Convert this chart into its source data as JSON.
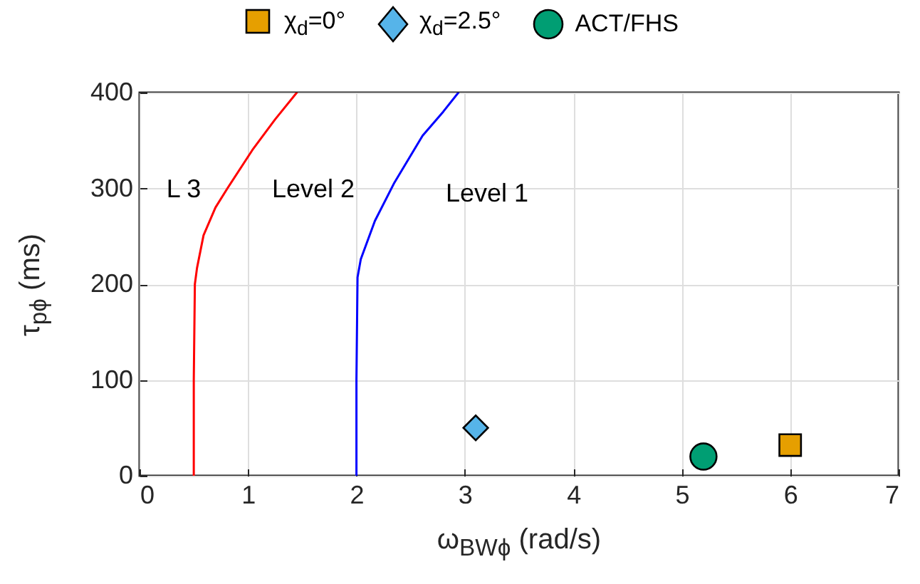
{
  "chart_data": {
    "type": "scatter",
    "xlabel": "ω$_{BWϕ}$ (rad/s)",
    "ylabel": "τ$_{pϕ}$ (ms)",
    "xlim": [
      0,
      7
    ],
    "xticks": [
      0,
      1,
      2,
      3,
      4,
      5,
      6,
      7
    ],
    "ylim": [
      0,
      400
    ],
    "yticks": [
      0,
      100,
      200,
      300,
      400
    ],
    "grid": true,
    "legend": "top",
    "series": [
      {
        "type": "line",
        "color": "#ff0000",
        "x": [
          0.5,
          0.5,
          0.51,
          0.53,
          0.59,
          0.7,
          0.81,
          1.04,
          1.25,
          1.45
        ],
        "values": [
          0,
          100,
          200,
          217,
          251,
          280,
          300,
          340,
          372,
          400
        ]
      },
      {
        "type": "line",
        "color": "#0000ff",
        "x": [
          2.0,
          2.0,
          2.01,
          2.04,
          2.17,
          2.35,
          2.61,
          2.8,
          2.94
        ],
        "values": [
          0,
          100,
          207,
          226,
          266,
          306,
          355,
          380,
          400
        ]
      },
      {
        "name": "χ$_{d}$=0°",
        "color": "#e69f00",
        "marker": "square",
        "x": [
          6
        ],
        "values": [
          32
        ]
      },
      {
        "name": "χ$_{d}$=2.5°",
        "color": "#56b4e9",
        "marker": "diamond",
        "x": [
          3.1
        ],
        "values": [
          50
        ]
      },
      {
        "name": "ACT/FHS",
        "color": "#009e73",
        "marker": "circle",
        "x": [
          5.2
        ],
        "values": [
          20
        ]
      }
    ],
    "annotations": [
      "L 3",
      "Level 2",
      "Level 1"
    ]
  }
}
